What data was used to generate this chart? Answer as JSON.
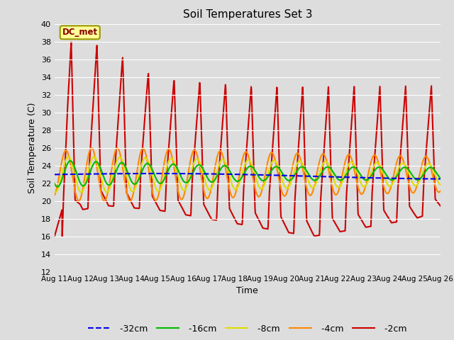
{
  "title": "Soil Temperatures Set 3",
  "xlabel": "Time",
  "ylabel": "Soil Temperature (C)",
  "annotation": "DC_met",
  "ylim": [
    12,
    40
  ],
  "yticks": [
    12,
    14,
    16,
    18,
    20,
    22,
    24,
    26,
    28,
    30,
    32,
    34,
    36,
    38,
    40
  ],
  "xtick_labels": [
    "Aug 11",
    "Aug 12",
    "Aug 13",
    "Aug 14",
    "Aug 15",
    "Aug 16",
    "Aug 17",
    "Aug 18",
    "Aug 19",
    "Aug 20",
    "Aug 21",
    "Aug 22",
    "Aug 23",
    "Aug 24",
    "Aug 25",
    "Aug 26"
  ],
  "series_colors": {
    "-32cm": "#0000ee",
    "-16cm": "#00bb00",
    "-8cm": "#dddd00",
    "-4cm": "#ff8800",
    "-2cm": "#cc0000"
  },
  "series_styles": {
    "-32cm": "--",
    "-16cm": "-",
    "-8cm": "-",
    "-4cm": "-",
    "-2cm": "-"
  },
  "bg_color": "#dddddd",
  "grid_color": "#ffffff",
  "fig_color": "#dddddd",
  "n_points": 1500
}
